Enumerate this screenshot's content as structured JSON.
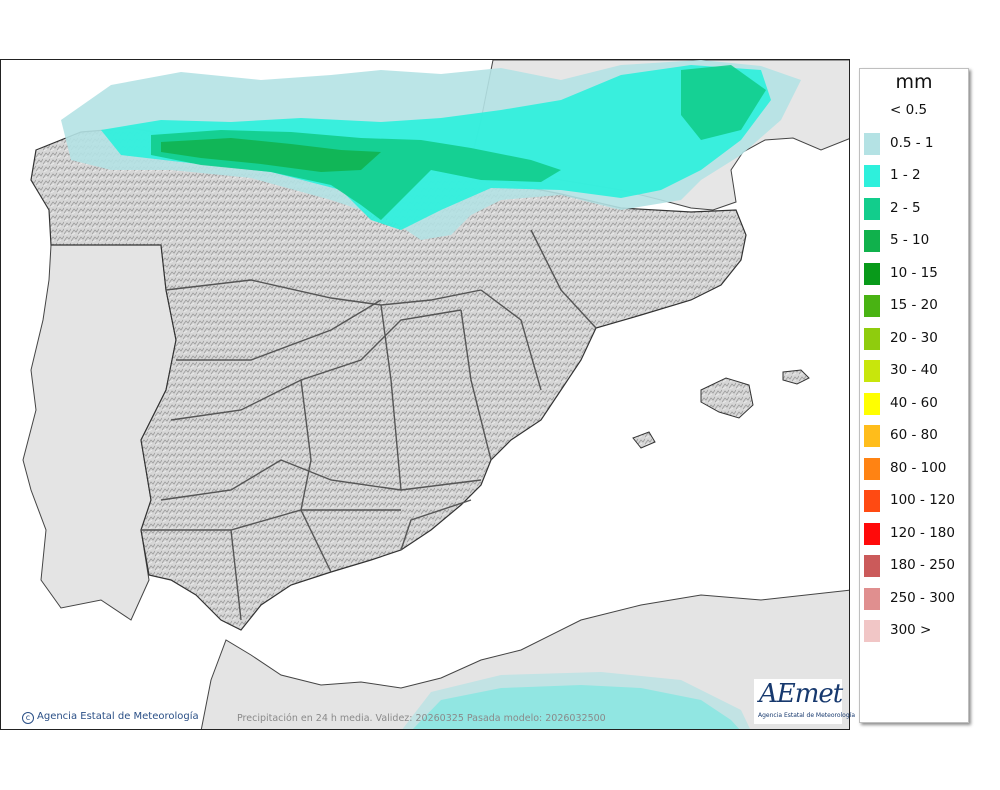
{
  "map": {
    "caption": "Precipitación en 24 h media. Validez: 20260325 Pasada modelo: 2026032500",
    "credit": "Agencia Estatal de Meteorología",
    "logo_wordmark": "AEmet",
    "logo_subtitle": "Agencia Estatal de Meteorología"
  },
  "legend": {
    "unit": "mm",
    "items": [
      {
        "label": "< 0.5",
        "color": ""
      },
      {
        "label": "0.5 - 1",
        "color": "#b4e2e4"
      },
      {
        "label": "1 - 2",
        "color": "#2ef0dc"
      },
      {
        "label": "2 - 5",
        "color": "#12cd8c"
      },
      {
        "label": "5 - 10",
        "color": "#10b14c"
      },
      {
        "label": "10 - 15",
        "color": "#089a1a"
      },
      {
        "label": "15 - 20",
        "color": "#49b313"
      },
      {
        "label": "20 - 30",
        "color": "#8fcc0d"
      },
      {
        "label": "30 - 40",
        "color": "#c8e60c"
      },
      {
        "label": "40 - 60",
        "color": "#ffff00"
      },
      {
        "label": "60 - 80",
        "color": "#ffbd1b"
      },
      {
        "label": "80 - 100",
        "color": "#ff8313"
      },
      {
        "label": "100 - 120",
        "color": "#ff4a12"
      },
      {
        "label": "120 - 180",
        "color": "#ff0a0a"
      },
      {
        "label": "180 - 250",
        "color": "#cb5a5a"
      },
      {
        "label": "250 - 300",
        "color": "#e08f8f"
      },
      {
        "label": "300 >",
        "color": "#f1c6c6"
      }
    ]
  }
}
